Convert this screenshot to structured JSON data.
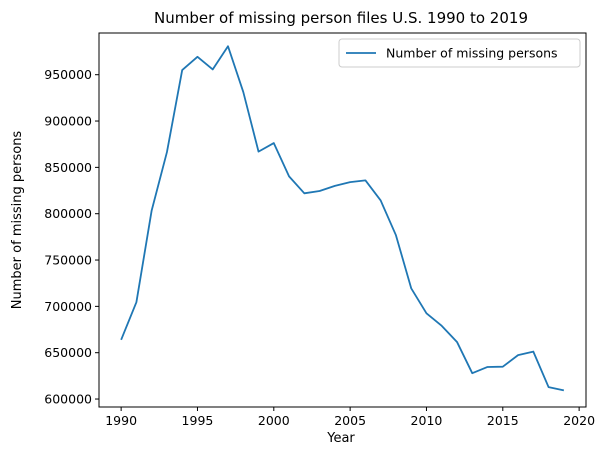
{
  "chart_data": {
    "type": "line",
    "title": "Number of missing person files U.S. 1990 to 2019",
    "xlabel": "Year",
    "ylabel": "Number of missing persons",
    "xlim": [
      1988.55,
      2020.45
    ],
    "ylim": [
      591400,
      995000
    ],
    "x_ticks": [
      1990,
      1995,
      2000,
      2005,
      2010,
      2015,
      2020
    ],
    "y_ticks": [
      600000,
      650000,
      700000,
      750000,
      800000,
      850000,
      900000,
      950000
    ],
    "grid": false,
    "legend_position": "top-right",
    "series": [
      {
        "name": "Number of missing persons",
        "color": "#1f77b4",
        "x": [
          1990,
          1991,
          1992,
          1993,
          1994,
          1995,
          1996,
          1997,
          1998,
          1999,
          2000,
          2001,
          2002,
          2003,
          2004,
          2005,
          2006,
          2007,
          2008,
          2009,
          2010,
          2011,
          2012,
          2013,
          2014,
          2015,
          2016,
          2017,
          2018,
          2019
        ],
        "values": [
          663900,
          704500,
          803500,
          866500,
          955000,
          969300,
          955700,
          980700,
          931400,
          867000,
          876200,
          840300,
          822000,
          824500,
          830000,
          834100,
          836000,
          814300,
          776800,
          719500,
          692500,
          679000,
          661600,
          627900,
          634600,
          634900,
          647400,
          651200,
          612800,
          609300
        ]
      }
    ]
  }
}
